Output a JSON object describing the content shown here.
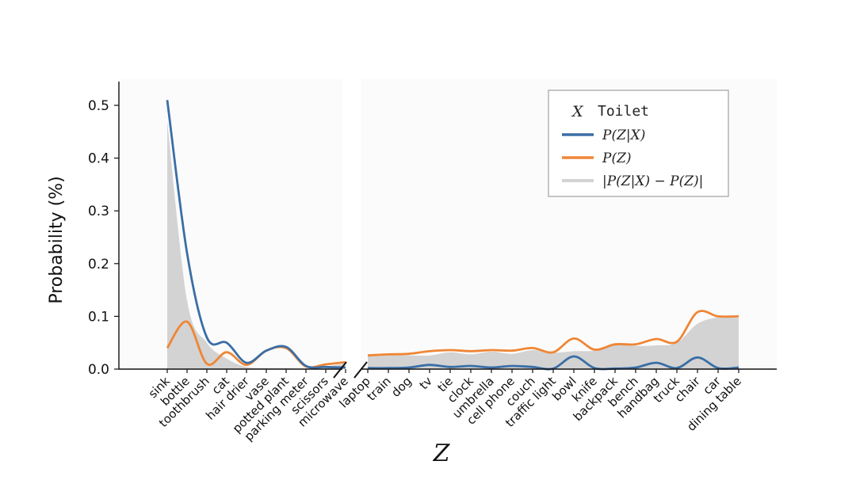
{
  "chart_data": {
    "type": "line",
    "ylabel": "Probability (%)",
    "xlabel": "Z",
    "ylim": [
      0,
      0.52
    ],
    "yticks": [
      "0.0",
      "0.1",
      "0.2",
      "0.3",
      "0.4",
      "0.5"
    ],
    "legend": {
      "title_var": "X",
      "title_value": "Toilet",
      "location": "top-right"
    },
    "series_style": {
      "conditional_color": "#3a6ea5",
      "marginal_color": "#ef8636",
      "difference_color": "#d3d3d3"
    },
    "segments": [
      {
        "categories": [
          "sink",
          "bottle",
          "toothbrush",
          "cat",
          "hair drier",
          "vase",
          "potted plant",
          "parking meter",
          "scissors",
          "microwave"
        ],
        "series": [
          {
            "name": "P(Z|X)",
            "values": [
              0.51,
              0.22,
              0.06,
              0.05,
              0.012,
              0.035,
              0.042,
              0.006,
              0.004,
              0.003
            ]
          },
          {
            "name": "P(Z)",
            "values": [
              0.04,
              0.09,
              0.01,
              0.032,
              0.008,
              0.035,
              0.04,
              0.005,
              0.009,
              0.013
            ]
          },
          {
            "name": "|P(Z|X) − P(Z)|",
            "values": [
              0.47,
              0.13,
              0.05,
              0.02,
              0.004,
              0.002,
              0.002,
              0.001,
              0.005,
              0.01
            ]
          }
        ]
      },
      {
        "categories": [
          "laptop",
          "train",
          "dog",
          "tv",
          "tie",
          "clock",
          "umbrella",
          "cell phone",
          "couch",
          "traffic light",
          "bowl",
          "knife",
          "backpack",
          "bench",
          "handbag",
          "truck",
          "chair",
          "car",
          "dining table"
        ],
        "series": [
          {
            "name": "P(Z|X)",
            "values": [
              0.002,
              0.002,
              0.003,
              0.008,
              0.004,
              0.006,
              0.003,
              0.006,
              0.004,
              0.001,
              0.024,
              0.002,
              0.001,
              0.003,
              0.012,
              0.002,
              0.022,
              0.002,
              0.003
            ]
          },
          {
            "name": "P(Z)",
            "values": [
              0.026,
              0.028,
              0.029,
              0.034,
              0.036,
              0.034,
              0.036,
              0.035,
              0.04,
              0.032,
              0.058,
              0.037,
              0.047,
              0.047,
              0.057,
              0.052,
              0.108,
              0.1,
              0.1
            ]
          },
          {
            "name": "|P(Z|X) − P(Z)|",
            "values": [
              0.024,
              0.026,
              0.026,
              0.026,
              0.032,
              0.028,
              0.033,
              0.029,
              0.036,
              0.031,
              0.034,
              0.035,
              0.046,
              0.044,
              0.045,
              0.05,
              0.086,
              0.098,
              0.097
            ]
          }
        ]
      }
    ]
  }
}
